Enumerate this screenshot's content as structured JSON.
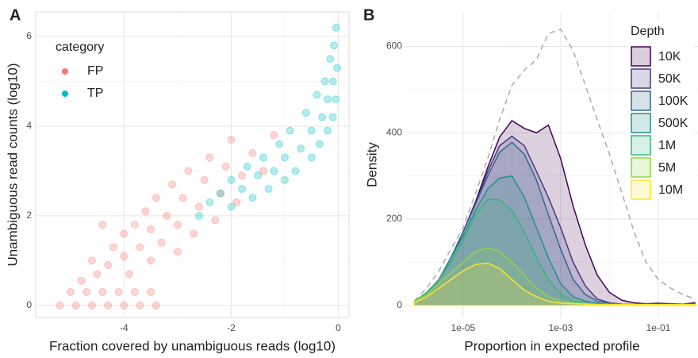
{
  "chart_data": [
    {
      "type": "scatter",
      "panel_label": "A",
      "x_label": "Fraction covered by unambiguous reads (log10)",
      "y_label": "Unambiguous read counts (log10)",
      "legend_title": "category",
      "legend_position": "top-left",
      "grid": true,
      "xlim": [
        -5.65,
        0.2
      ],
      "ylim": [
        -0.27,
        6.55
      ],
      "xticks": [
        -4,
        -2,
        0
      ],
      "yticks": [
        0,
        2,
        4,
        6
      ],
      "series": [
        {
          "name": "FP",
          "color": "#F8766D",
          "x": [
            -5.2,
            -4.9,
            -4.6,
            -4.3,
            -4.0,
            -3.7,
            -3.4,
            -5.0,
            -4.7,
            -4.4,
            -4.1,
            -3.8,
            -3.5,
            -4.8,
            -4.5,
            -4.6,
            -4.3,
            -4.2,
            -4.0,
            -4.0,
            -3.9,
            -3.8,
            -3.7,
            -3.6,
            -3.5,
            -3.5,
            -3.4,
            -3.3,
            -3.2,
            -3.1,
            -3.0,
            -3.0,
            -2.9,
            -2.8,
            -2.7,
            -2.6,
            -2.5,
            -2.4,
            -2.3,
            -2.2,
            -2.1,
            -2.0,
            -1.9,
            -1.8,
            -1.6,
            -1.4,
            -1.2,
            -4.4
          ],
          "y": [
            0,
            0,
            0,
            0,
            0,
            0,
            0,
            0.3,
            0.3,
            0.3,
            0.3,
            0.3,
            0.3,
            0.55,
            0.7,
            1.0,
            0.9,
            1.3,
            1.1,
            1.6,
            0.7,
            1.8,
            1.3,
            2.1,
            1.0,
            1.7,
            2.4,
            1.4,
            2.0,
            2.7,
            1.2,
            1.8,
            2.4,
            3.0,
            1.6,
            2.2,
            2.8,
            3.3,
            1.9,
            2.5,
            3.1,
            3.7,
            2.3,
            2.9,
            3.4,
            3.0,
            3.8,
            1.8
          ]
        },
        {
          "name": "TP",
          "color": "#00BFC4",
          "x": [
            -2.4,
            -2.2,
            -2.0,
            -2.0,
            -1.8,
            -1.7,
            -1.6,
            -1.5,
            -1.4,
            -1.3,
            -1.2,
            -1.1,
            -1.0,
            -1.0,
            -0.9,
            -0.8,
            -0.7,
            -0.6,
            -0.5,
            -0.5,
            -0.4,
            -0.35,
            -0.3,
            -0.25,
            -0.2,
            -0.2,
            -0.15,
            -0.1,
            -0.1,
            -0.08,
            -0.05,
            -0.04,
            -0.02,
            -2.6
          ],
          "y": [
            2.3,
            2.5,
            2.2,
            2.8,
            2.6,
            3.1,
            2.4,
            2.9,
            3.3,
            2.6,
            3.0,
            3.6,
            2.8,
            3.3,
            3.9,
            3.0,
            3.5,
            4.3,
            3.3,
            3.9,
            4.7,
            3.6,
            4.2,
            5.0,
            3.9,
            4.6,
            5.5,
            4.2,
            5.0,
            5.8,
            4.6,
            6.2,
            5.3,
            2.0
          ]
        }
      ]
    },
    {
      "type": "density",
      "panel_label": "B",
      "x_label": "Proportion in expected profile",
      "y_label": "Density",
      "legend_title": "Depth",
      "legend_position": "top-right",
      "grid": true,
      "log_x": true,
      "xlim": [
        6.8e-07,
        0.65
      ],
      "ylim": [
        -28,
        680
      ],
      "xticks": [
        {
          "value": 1e-05,
          "label": "1e-05"
        },
        {
          "value": 0.001,
          "label": "1e-03"
        },
        {
          "value": 0.1,
          "label": "1e-01"
        }
      ],
      "yticks": [
        0,
        200,
        400,
        600
      ],
      "x": [
        1e-06,
        1.8e-06,
        3.2e-06,
        5.6e-06,
        1e-05,
        1.8e-05,
        3.2e-05,
        5.6e-05,
        0.0001,
        0.00018,
        0.00032,
        0.00056,
        0.001,
        0.0018,
        0.0032,
        0.0056,
        0.01,
        0.018,
        0.032,
        0.056,
        0.1,
        0.18,
        0.32,
        0.56
      ],
      "series": [
        {
          "color": "#AAAAAA",
          "dashed": true,
          "values": [
            10,
            40,
            80,
            130,
            180,
            260,
            340,
            430,
            510,
            545,
            570,
            630,
            640,
            590,
            510,
            430,
            350,
            260,
            170,
            100,
            60,
            40,
            25,
            15
          ]
        },
        {
          "name": "10K",
          "color": "#440154",
          "values": [
            8,
            30,
            60,
            110,
            170,
            240,
            320,
            390,
            428,
            410,
            400,
            418,
            340,
            230,
            140,
            70,
            30,
            12,
            6,
            4,
            5,
            4,
            3,
            6
          ]
        },
        {
          "name": "50K",
          "color": "#443A83",
          "values": [
            8,
            30,
            60,
            110,
            170,
            235,
            310,
            370,
            392,
            370,
            310,
            250,
            180,
            100,
            45,
            15,
            6,
            3,
            2,
            2,
            2,
            2,
            2,
            2
          ]
        },
        {
          "name": "100K",
          "color": "#31688E",
          "values": [
            8,
            30,
            60,
            110,
            170,
            235,
            300,
            355,
            378,
            350,
            290,
            210,
            130,
            60,
            25,
            10,
            5,
            2,
            2,
            2,
            2,
            2,
            2,
            2
          ]
        },
        {
          "name": "500K",
          "color": "#21908C",
          "values": [
            8,
            30,
            60,
            110,
            160,
            220,
            270,
            295,
            300,
            250,
            180,
            110,
            50,
            20,
            10,
            5,
            2,
            2,
            2,
            2,
            2,
            2,
            2,
            2
          ]
        },
        {
          "name": "1M",
          "color": "#35B779",
          "values": [
            8,
            30,
            60,
            100,
            150,
            210,
            245,
            245,
            220,
            170,
            110,
            60,
            25,
            10,
            5,
            2,
            2,
            2,
            2,
            2,
            2,
            2,
            2,
            2
          ]
        },
        {
          "name": "5M",
          "color": "#8FD744",
          "values": [
            8,
            25,
            50,
            75,
            100,
            125,
            133,
            125,
            100,
            70,
            40,
            20,
            10,
            6,
            4,
            2,
            2,
            2,
            2,
            2,
            2,
            2,
            2,
            2
          ]
        },
        {
          "name": "10M",
          "color": "#FDE725",
          "values": [
            6,
            20,
            40,
            60,
            80,
            95,
            98,
            85,
            60,
            35,
            20,
            10,
            5,
            4,
            3,
            2,
            2,
            2,
            2,
            2,
            2,
            2,
            2,
            2
          ]
        }
      ]
    }
  ]
}
